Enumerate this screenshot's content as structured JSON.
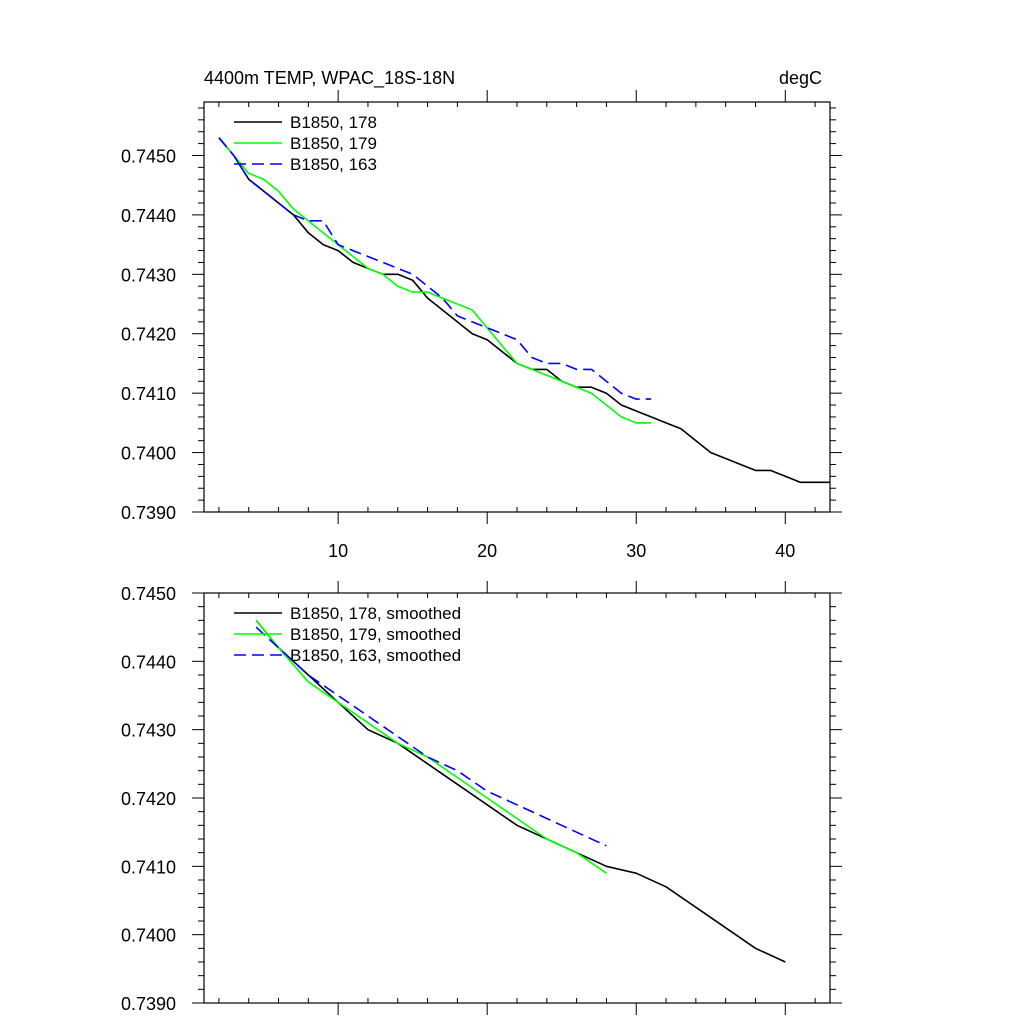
{
  "chart_data": [
    {
      "type": "line",
      "title_left": "4400m TEMP, WPAC_18S-18N",
      "title_right": "degC",
      "xlim": [
        1,
        43
      ],
      "ylim": [
        0.739,
        0.7459
      ],
      "xticks": [
        10,
        20,
        30,
        40
      ],
      "xtick_labels": [
        "10",
        "20",
        "30",
        "40"
      ],
      "yticks": [
        0.739,
        0.74,
        0.741,
        0.742,
        0.743,
        0.744,
        0.745
      ],
      "ytick_labels": [
        "0.7390",
        "0.7400",
        "0.7410",
        "0.7420",
        "0.7430",
        "0.7440",
        "0.7450"
      ],
      "legend_position": "top-left",
      "series": [
        {
          "name": "B1850, 178",
          "color": "#000000",
          "dash": "solid",
          "x": [
            2,
            3,
            4,
            5,
            6,
            7,
            8,
            9,
            10,
            11,
            12,
            13,
            14,
            15,
            16,
            17,
            18,
            19,
            20,
            21,
            22,
            23,
            24,
            25,
            26,
            27,
            28,
            29,
            30,
            31,
            32,
            33,
            34,
            35,
            36,
            37,
            38,
            39,
            40,
            41,
            42,
            43
          ],
          "y": [
            0.7453,
            0.745,
            0.7446,
            0.7444,
            0.7442,
            0.744,
            0.7437,
            0.7435,
            0.7434,
            0.7432,
            0.7431,
            0.743,
            0.743,
            0.7429,
            0.7426,
            0.7424,
            0.7422,
            0.742,
            0.7419,
            0.7417,
            0.7415,
            0.7414,
            0.7414,
            0.7412,
            0.7411,
            0.7411,
            0.741,
            0.7408,
            0.7407,
            0.7406,
            0.7405,
            0.7404,
            0.7402,
            0.74,
            0.7399,
            0.7398,
            0.7397,
            0.7397,
            0.7396,
            0.7395,
            0.7395,
            0.7395
          ]
        },
        {
          "name": "B1850, 179",
          "color": "#00ff00",
          "dash": "solid",
          "x": [
            2,
            3,
            4,
            5,
            6,
            7,
            8,
            9,
            10,
            11,
            12,
            13,
            14,
            15,
            16,
            17,
            18,
            19,
            20,
            21,
            22,
            23,
            24,
            25,
            26,
            27,
            28,
            29,
            30,
            31
          ],
          "y": [
            0.7453,
            0.745,
            0.7447,
            0.7446,
            0.7444,
            0.7441,
            0.7439,
            0.7437,
            0.7435,
            0.7433,
            0.7431,
            0.743,
            0.7428,
            0.7427,
            0.7427,
            0.7426,
            0.7425,
            0.7424,
            0.7421,
            0.7418,
            0.7415,
            0.7414,
            0.7413,
            0.7412,
            0.7411,
            0.741,
            0.7408,
            0.7406,
            0.7405,
            0.7405
          ]
        },
        {
          "name": "B1850, 163",
          "color": "#0000ff",
          "dash": "dashed",
          "x": [
            2,
            3,
            4,
            5,
            6,
            7,
            8,
            9,
            10,
            11,
            12,
            13,
            14,
            15,
            16,
            17,
            18,
            19,
            20,
            21,
            22,
            23,
            24,
            25,
            26,
            27,
            28,
            29,
            30,
            31
          ],
          "y": [
            0.7453,
            0.745,
            0.7446,
            0.7444,
            0.7442,
            0.744,
            0.7439,
            0.7439,
            0.7435,
            0.7434,
            0.7433,
            0.7432,
            0.7431,
            0.743,
            0.7428,
            0.7426,
            0.7423,
            0.7422,
            0.7421,
            0.742,
            0.7419,
            0.7416,
            0.7415,
            0.7415,
            0.7414,
            0.7414,
            0.7412,
            0.741,
            0.7409,
            0.7409
          ]
        }
      ]
    },
    {
      "type": "line",
      "xlim": [
        1,
        43
      ],
      "ylim": [
        0.739,
        0.745
      ],
      "xticks": [
        10,
        20,
        30,
        40
      ],
      "yticks": [
        0.739,
        0.74,
        0.741,
        0.742,
        0.743,
        0.744,
        0.745
      ],
      "ytick_labels": [
        "0.7390",
        "0.7400",
        "0.7410",
        "0.7420",
        "0.7430",
        "0.7440",
        "0.7450"
      ],
      "legend_position": "top-left",
      "series": [
        {
          "name": "B1850, 178, smoothed",
          "color": "#000000",
          "dash": "solid",
          "x": [
            4.5,
            6,
            8,
            10,
            12,
            14,
            16,
            18,
            20,
            22,
            24,
            26,
            28,
            30,
            32,
            34,
            36,
            38,
            40
          ],
          "y": [
            0.7446,
            0.7442,
            0.7438,
            0.7434,
            0.743,
            0.7428,
            0.7425,
            0.7422,
            0.7419,
            0.7416,
            0.7414,
            0.7412,
            0.741,
            0.7409,
            0.7407,
            0.7404,
            0.7401,
            0.7398,
            0.7396
          ]
        },
        {
          "name": "B1850, 179, smoothed",
          "color": "#00ff00",
          "dash": "solid",
          "x": [
            4.5,
            6,
            8,
            10,
            12,
            14,
            16,
            18,
            20,
            22,
            24,
            26,
            28
          ],
          "y": [
            0.7446,
            0.7442,
            0.7437,
            0.7434,
            0.7431,
            0.7428,
            0.7426,
            0.7423,
            0.742,
            0.7417,
            0.7414,
            0.7412,
            0.7409
          ]
        },
        {
          "name": "B1850, 163, smoothed",
          "color": "#0000ff",
          "dash": "dashed",
          "x": [
            4.5,
            6,
            8,
            10,
            12,
            14,
            16,
            18,
            20,
            22,
            24,
            26,
            28
          ],
          "y": [
            0.7445,
            0.7442,
            0.7438,
            0.7435,
            0.7432,
            0.7429,
            0.7426,
            0.7424,
            0.7421,
            0.7419,
            0.7417,
            0.7415,
            0.7413
          ]
        }
      ]
    }
  ]
}
